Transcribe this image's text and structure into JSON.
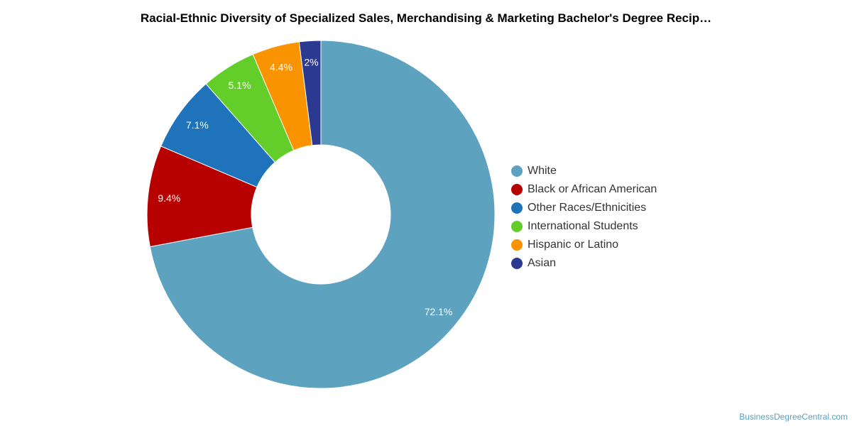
{
  "chart_data": {
    "type": "pie",
    "title": "Racial-Ethnic Diversity of Specialized Sales, Merchandising & Marketing Bachelor's Degree Recip…",
    "categories": [
      "White",
      "Black or African American",
      "Other Races/Ethnicities",
      "International Students",
      "Hispanic or Latino",
      "Asian"
    ],
    "values": [
      72.1,
      9.4,
      7.1,
      5.1,
      4.4,
      2.0
    ],
    "labels": [
      "72.1%",
      "9.4%",
      "7.1%",
      "5.1%",
      "4.4%",
      "2%"
    ],
    "colors": [
      "#5da2bf",
      "#b70000",
      "#1f73ba",
      "#63cd29",
      "#f99300",
      "#2b3990"
    ],
    "donut": true,
    "legend_position": "right"
  },
  "footer": {
    "source": "BusinessDegreeCentral.com"
  }
}
